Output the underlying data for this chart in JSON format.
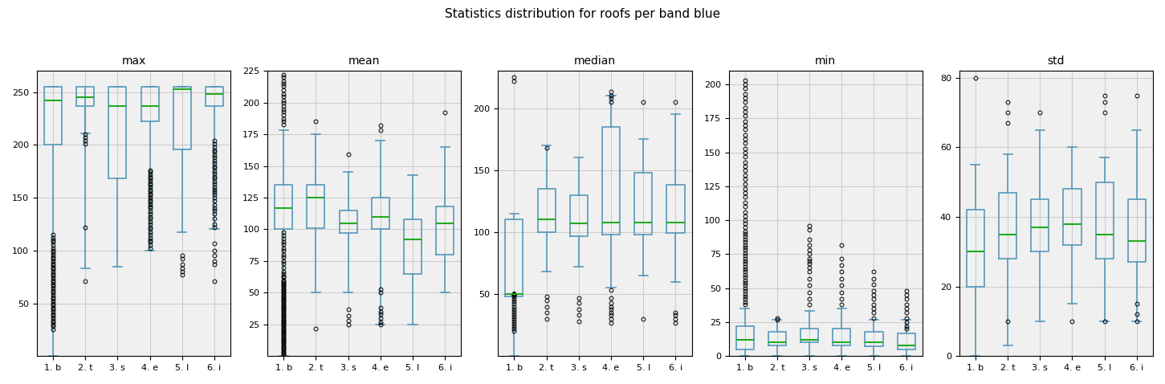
{
  "title": "Statistics distribution for roofs per band blue",
  "subplots": [
    "max",
    "mean",
    "median",
    "min",
    "std"
  ],
  "categories": [
    "1. b",
    "2. t",
    "3. s",
    "4. e",
    "5. l",
    "6. i"
  ],
  "box_color": "#5599bb",
  "median_color": "#22aa22",
  "background_color": "#f0f0f0",
  "grid_color": "#cccccc",
  "max": {
    "q1": [
      200,
      237,
      168,
      222,
      196,
      237
    ],
    "median": [
      242,
      245,
      237,
      237,
      253,
      248
    ],
    "q3": [
      255,
      255,
      255,
      255,
      255,
      255
    ],
    "whislo": [
      0,
      83,
      85,
      100,
      117,
      120
    ],
    "whishi": [
      255,
      211,
      255,
      255,
      255,
      255
    ],
    "fliers_low": [
      [
        25,
        28,
        30,
        32,
        34,
        36,
        38,
        40,
        42,
        44,
        46,
        48,
        50,
        52,
        54,
        56,
        58,
        60,
        62,
        64,
        66,
        68,
        70,
        72,
        74,
        76,
        78,
        80,
        82,
        84,
        86,
        88,
        90,
        92,
        94,
        96,
        98,
        100,
        102,
        105,
        108,
        110,
        112,
        115
      ],
      [
        71,
        122
      ],
      [],
      [
        102,
        105,
        108,
        110,
        112,
        115,
        117,
        120,
        122,
        125,
        127,
        130,
        132,
        135,
        137,
        140,
        142,
        144,
        146,
        148,
        150,
        152,
        154,
        156,
        158,
        160,
        162,
        164,
        166,
        168,
        170,
        172,
        174,
        176
      ],
      [
        77,
        80,
        83,
        87,
        92,
        95
      ],
      [
        71,
        87,
        90,
        95,
        100,
        107,
        122,
        125,
        130,
        135,
        138,
        140,
        143,
        147,
        150,
        153,
        155,
        158,
        160,
        163,
        165,
        168,
        170,
        173,
        175,
        178,
        180,
        183,
        185,
        188,
        190,
        193,
        195,
        198
      ]
    ],
    "fliers_high": [
      [],
      [
        201,
        204,
        207,
        210
      ],
      [],
      [],
      [],
      [
        201,
        204
      ]
    ],
    "ylim": [
      0,
      270
    ],
    "yticks": [
      50,
      100,
      150,
      200,
      250
    ]
  },
  "mean": {
    "q1": [
      100,
      101,
      97,
      100,
      65,
      80
    ],
    "median": [
      117,
      125,
      105,
      110,
      92,
      105
    ],
    "q3": [
      135,
      135,
      115,
      125,
      108,
      118
    ],
    "whislo": [
      0,
      50,
      50,
      25,
      25,
      50
    ],
    "whishi": [
      178,
      175,
      145,
      170,
      143,
      165
    ],
    "fliers_low": [
      [
        1,
        2,
        3,
        4,
        5,
        6,
        7,
        8,
        9,
        10,
        11,
        12,
        13,
        14,
        15,
        16,
        17,
        18,
        19,
        20,
        21,
        22,
        23,
        24,
        25,
        26,
        27,
        28,
        29,
        30,
        31,
        32,
        33,
        34,
        35,
        36,
        37,
        38,
        39,
        40,
        41,
        42,
        43,
        44,
        45,
        46,
        47,
        48,
        49,
        50,
        51,
        52,
        53,
        54,
        55,
        56,
        57,
        58,
        59,
        60,
        62,
        63,
        65,
        67,
        70,
        73,
        75,
        78,
        80,
        83,
        85,
        88,
        90,
        93,
        95,
        98
      ],
      [
        22
      ],
      [
        25,
        28,
        32,
        37
      ],
      [
        25,
        27,
        30,
        33,
        35,
        38,
        50,
        53
      ],
      [],
      []
    ],
    "fliers_high": [
      [
        183,
        185,
        187,
        190,
        193,
        195,
        197,
        200,
        202,
        205,
        207,
        210,
        213,
        215,
        217,
        220,
        222
      ],
      [
        185
      ],
      [
        159
      ],
      [
        178,
        182
      ],
      [],
      [
        192
      ]
    ],
    "ylim": [
      0,
      225
    ],
    "yticks": [
      25,
      50,
      75,
      100,
      125,
      150,
      175,
      200,
      225
    ]
  },
  "median": {
    "q1": [
      48,
      100,
      97,
      98,
      98,
      99
    ],
    "median": [
      50,
      110,
      107,
      108,
      108,
      108
    ],
    "q3": [
      110,
      135,
      130,
      185,
      148,
      138
    ],
    "whislo": [
      0,
      68,
      72,
      55,
      65,
      60
    ],
    "whishi": [
      115,
      170,
      160,
      210,
      175,
      195
    ],
    "fliers_low": [
      [
        20,
        22,
        24,
        26,
        28,
        30,
        32,
        34,
        36,
        38,
        40,
        42,
        44,
        46,
        48,
        50,
        50,
        50,
        50,
        50,
        50,
        50,
        50,
        50,
        50,
        50,
        50,
        50,
        50,
        50,
        50,
        50,
        50,
        50,
        50,
        50,
        50,
        50,
        50,
        50,
        50,
        50,
        50,
        50
      ],
      [
        30,
        35,
        40,
        45,
        48
      ],
      [
        28,
        33,
        38,
        43,
        47
      ],
      [
        27,
        30,
        33,
        35,
        38,
        40,
        43,
        47,
        53
      ],
      [
        30
      ],
      [
        27,
        30,
        33,
        35
      ]
    ],
    "fliers_high": [
      [
        222,
        225
      ],
      [
        168
      ],
      [],
      [
        205,
        208,
        210,
        213
      ],
      [
        205
      ],
      [
        205
      ]
    ],
    "ylim": [
      0,
      230
    ],
    "yticks": [
      50,
      100,
      150,
      200
    ]
  },
  "min": {
    "q1": [
      5,
      8,
      10,
      8,
      7,
      5
    ],
    "median": [
      12,
      10,
      12,
      10,
      10,
      8
    ],
    "q3": [
      22,
      18,
      20,
      20,
      18,
      17
    ],
    "whislo": [
      0,
      0,
      0,
      0,
      0,
      0
    ],
    "whishi": [
      35,
      27,
      33,
      35,
      27,
      27
    ],
    "fliers_low": [],
    "fliers_high": [
      [
        38,
        40,
        42,
        44,
        46,
        48,
        50,
        52,
        54,
        56,
        58,
        60,
        62,
        64,
        66,
        68,
        70,
        72,
        74,
        76,
        78,
        80,
        82,
        84,
        86,
        88,
        90,
        92,
        95,
        98,
        100,
        103,
        106,
        110,
        113,
        117,
        120,
        123,
        127,
        130,
        133,
        137,
        140,
        143,
        147,
        150,
        153,
        157,
        160,
        163,
        167,
        170,
        173,
        177,
        180,
        183,
        187,
        190,
        193,
        197,
        200,
        203
      ],
      [
        27,
        28
      ],
      [
        38,
        42,
        47,
        52,
        57,
        62,
        65,
        68,
        70,
        72,
        75,
        78,
        82,
        86,
        93,
        96
      ],
      [
        38,
        42,
        47,
        52,
        57,
        62,
        67,
        72,
        82
      ],
      [
        28,
        32,
        35,
        38,
        42,
        45,
        48,
        53,
        57,
        62
      ],
      [
        20,
        22,
        25,
        28,
        32,
        35,
        38,
        42,
        45,
        48
      ]
    ],
    "ylim": [
      0,
      210
    ],
    "yticks": [
      0,
      25,
      50,
      75,
      100,
      125,
      150,
      175,
      200
    ]
  },
  "std": {
    "q1": [
      20,
      28,
      30,
      32,
      28,
      27
    ],
    "median": [
      30,
      35,
      37,
      38,
      35,
      33
    ],
    "q3": [
      42,
      47,
      45,
      48,
      50,
      45
    ],
    "whislo": [
      0,
      3,
      10,
      15,
      10,
      10
    ],
    "whishi": [
      55,
      58,
      65,
      60,
      57,
      65
    ],
    "fliers_low": [
      [],
      [
        10
      ],
      [],
      [
        10
      ],
      [
        10
      ],
      [
        10,
        12,
        15
      ]
    ],
    "fliers_high": [
      [
        80
      ],
      [
        67,
        70,
        73
      ],
      [
        70
      ],
      [],
      [
        70,
        73,
        75
      ],
      [
        75
      ]
    ],
    "ylim": [
      0,
      82
    ],
    "yticks": [
      0,
      20,
      40,
      60,
      80
    ]
  }
}
